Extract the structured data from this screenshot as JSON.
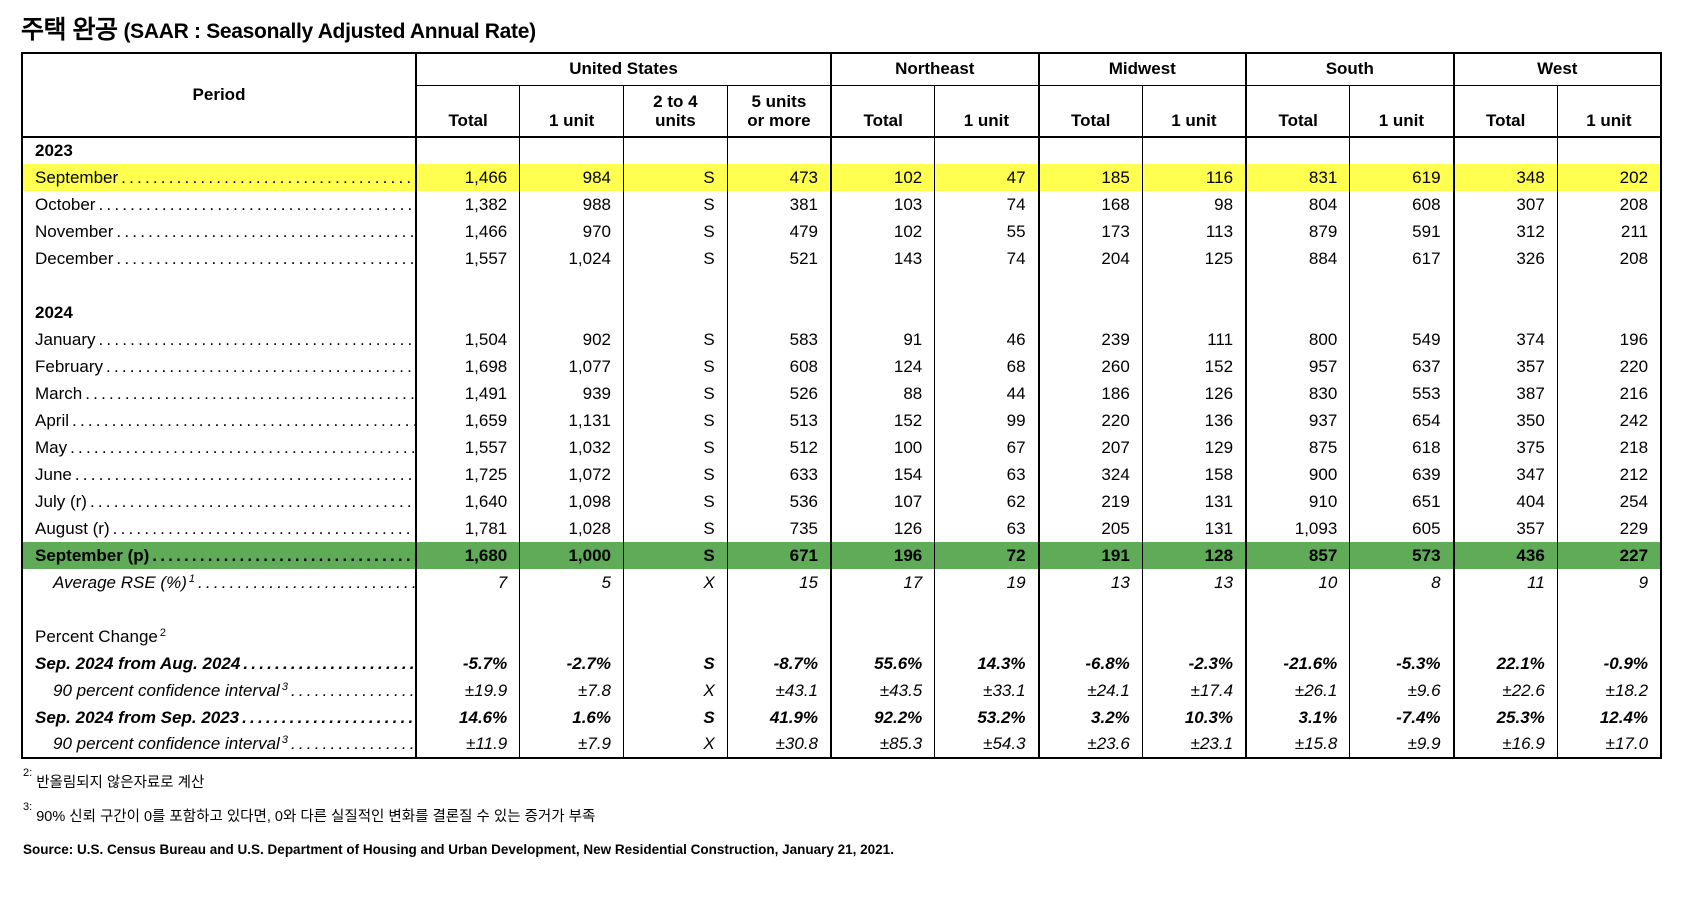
{
  "title": {
    "main": "주택 완공",
    "sub": "(SAAR : Seasonally Adjusted Annual Rate)"
  },
  "colors": {
    "highlight_yellow": "#FFFF4F",
    "highlight_green": "#5FAB57",
    "border": "#000000"
  },
  "table": {
    "period_header": "Period",
    "groups": [
      {
        "label": "United States",
        "subcols": [
          "Total",
          "1 unit",
          "2 to 4\nunits",
          "5 units\nor more"
        ]
      },
      {
        "label": "Northeast",
        "subcols": [
          "Total",
          "1 unit"
        ]
      },
      {
        "label": "Midwest",
        "subcols": [
          "Total",
          "1 unit"
        ]
      },
      {
        "label": "South",
        "subcols": [
          "Total",
          "1 unit"
        ]
      },
      {
        "label": "West",
        "subcols": [
          "Total",
          "1 unit"
        ]
      }
    ],
    "rows": [
      {
        "type": "year",
        "label": "2023"
      },
      {
        "type": "month",
        "label": "September",
        "highlight": "yellow",
        "values": [
          "1,466",
          "984",
          "S",
          "473",
          "102",
          "47",
          "185",
          "116",
          "831",
          "619",
          "348",
          "202"
        ]
      },
      {
        "type": "month",
        "label": "October",
        "values": [
          "1,382",
          "988",
          "S",
          "381",
          "103",
          "74",
          "168",
          "98",
          "804",
          "608",
          "307",
          "208"
        ]
      },
      {
        "type": "month",
        "label": "November",
        "values": [
          "1,466",
          "970",
          "S",
          "479",
          "102",
          "55",
          "173",
          "113",
          "879",
          "591",
          "312",
          "211"
        ]
      },
      {
        "type": "month",
        "label": "December",
        "values": [
          "1,557",
          "1,024",
          "S",
          "521",
          "143",
          "74",
          "204",
          "125",
          "884",
          "617",
          "326",
          "208"
        ]
      },
      {
        "type": "blank"
      },
      {
        "type": "year",
        "label": "2024"
      },
      {
        "type": "month",
        "label": "January",
        "values": [
          "1,504",
          "902",
          "S",
          "583",
          "91",
          "46",
          "239",
          "111",
          "800",
          "549",
          "374",
          "196"
        ]
      },
      {
        "type": "month",
        "label": "February",
        "values": [
          "1,698",
          "1,077",
          "S",
          "608",
          "124",
          "68",
          "260",
          "152",
          "957",
          "637",
          "357",
          "220"
        ]
      },
      {
        "type": "month",
        "label": "March",
        "values": [
          "1,491",
          "939",
          "S",
          "526",
          "88",
          "44",
          "186",
          "126",
          "830",
          "553",
          "387",
          "216"
        ]
      },
      {
        "type": "month",
        "label": "April",
        "values": [
          "1,659",
          "1,131",
          "S",
          "513",
          "152",
          "99",
          "220",
          "136",
          "937",
          "654",
          "350",
          "242"
        ]
      },
      {
        "type": "month",
        "label": "May",
        "values": [
          "1,557",
          "1,032",
          "S",
          "512",
          "100",
          "67",
          "207",
          "129",
          "875",
          "618",
          "375",
          "218"
        ]
      },
      {
        "type": "month",
        "label": "June",
        "values": [
          "1,725",
          "1,072",
          "S",
          "633",
          "154",
          "63",
          "324",
          "158",
          "900",
          "639",
          "347",
          "212"
        ]
      },
      {
        "type": "month",
        "label": "July (r)",
        "values": [
          "1,640",
          "1,098",
          "S",
          "536",
          "107",
          "62",
          "219",
          "131",
          "910",
          "651",
          "404",
          "254"
        ]
      },
      {
        "type": "month",
        "label": "August (r)",
        "values": [
          "1,781",
          "1,028",
          "S",
          "735",
          "126",
          "63",
          "205",
          "131",
          "1,093",
          "605",
          "357",
          "229"
        ]
      },
      {
        "type": "month",
        "label": "September (p)",
        "bold": true,
        "highlight": "green",
        "values": [
          "1,680",
          "1,000",
          "S",
          "671",
          "196",
          "72",
          "191",
          "128",
          "857",
          "573",
          "436",
          "227"
        ]
      },
      {
        "type": "rse",
        "label": "Average RSE (%)",
        "sup": "1",
        "values": [
          "7",
          "5",
          "X",
          "15",
          "17",
          "19",
          "13",
          "13",
          "10",
          "8",
          "11",
          "9"
        ]
      },
      {
        "type": "blank"
      },
      {
        "type": "section",
        "label": "Percent Change",
        "sup": "2"
      },
      {
        "type": "pct",
        "label": "Sep. 2024 from Aug. 2024",
        "values": [
          "-5.7%",
          "-2.7%",
          "S",
          "-8.7%",
          "55.6%",
          "14.3%",
          "-6.8%",
          "-2.3%",
          "-21.6%",
          "-5.3%",
          "22.1%",
          "-0.9%"
        ]
      },
      {
        "type": "ci",
        "label": "90 percent confidence interval",
        "sup": "3",
        "values": [
          "±19.9",
          "±7.8",
          "X",
          "±43.1",
          "±43.5",
          "±33.1",
          "±24.1",
          "±17.4",
          "±26.1",
          "±9.6",
          "±22.6",
          "±18.2"
        ]
      },
      {
        "type": "pct",
        "label": "Sep. 2024 from Sep. 2023",
        "values": [
          "14.6%",
          "1.6%",
          "S",
          "41.9%",
          "92.2%",
          "53.2%",
          "3.2%",
          "10.3%",
          "3.1%",
          "-7.4%",
          "25.3%",
          "12.4%"
        ]
      },
      {
        "type": "ci",
        "label": "90 percent confidence interval",
        "sup": "3",
        "values": [
          "±11.9",
          "±7.9",
          "X",
          "±30.8",
          "±85.3",
          "±54.3",
          "±23.6",
          "±23.1",
          "±15.8",
          "±9.9",
          "±16.9",
          "±17.0"
        ]
      }
    ]
  },
  "footnotes": [
    {
      "sup": "2:",
      "text": "반올림되지 않은자료로 계산"
    },
    {
      "sup": "3:",
      "text": "90% 신뢰 구간이 0를 포함하고 있다면, 0와 다른 실질적인 변화를 결론질 수 있는 증거가 부족"
    }
  ],
  "source": "Source: U.S. Census Bureau and U.S. Department of Housing and Urban Development, New Residential Construction, January 21, 2021."
}
